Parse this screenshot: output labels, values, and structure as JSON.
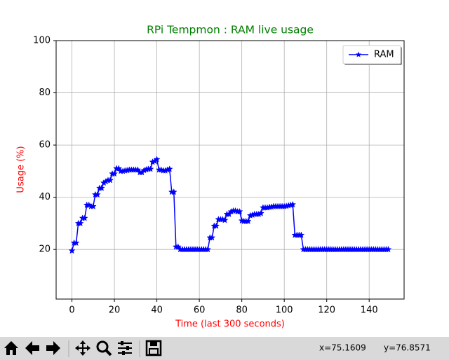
{
  "chart_data": {
    "type": "line",
    "title": "RPi Tempmon : RAM live usage",
    "title_color": "#008000",
    "x_label": "Time (last 300 seconds)",
    "y_label": "Usage (%)",
    "label_color": "#ff0000",
    "x": [
      0,
      1,
      2,
      3,
      4,
      5,
      6,
      7,
      8,
      9,
      10,
      11,
      12,
      13,
      14,
      15,
      16,
      17,
      18,
      19,
      20,
      21,
      22,
      23,
      24,
      25,
      26,
      27,
      28,
      29,
      30,
      31,
      32,
      33,
      34,
      35,
      36,
      37,
      38,
      39,
      40,
      41,
      42,
      43,
      44,
      45,
      46,
      47,
      48,
      49,
      50,
      51,
      52,
      53,
      54,
      55,
      56,
      57,
      58,
      59,
      60,
      61,
      62,
      63,
      64,
      65,
      66,
      67,
      68,
      69,
      70,
      71,
      72,
      73,
      74,
      75,
      76,
      77,
      78,
      79,
      80,
      81,
      82,
      83,
      84,
      85,
      86,
      87,
      88,
      89,
      90,
      91,
      92,
      93,
      94,
      95,
      96,
      97,
      98,
      99,
      100,
      101,
      102,
      103,
      104,
      105,
      106,
      107,
      108,
      109,
      110,
      111,
      112,
      113,
      114,
      115,
      116,
      117,
      118,
      119,
      120,
      121,
      122,
      123,
      124,
      125,
      126,
      127,
      128,
      129,
      130,
      131,
      132,
      133,
      134,
      135,
      136,
      137,
      138,
      139,
      140,
      141,
      142,
      143,
      144,
      145,
      146,
      147,
      148,
      149
    ],
    "series": [
      {
        "name": "RAM",
        "color": "#0000ff",
        "marker": "star",
        "values": [
          19.5,
          22.5,
          22.5,
          30,
          30,
          32,
          32,
          37,
          37,
          36.5,
          36.5,
          41,
          41,
          43.5,
          43.5,
          45.5,
          46,
          46.5,
          46.5,
          49,
          49,
          51,
          51,
          50,
          50,
          50.2,
          50.3,
          50.5,
          50.5,
          50.5,
          50.5,
          50.5,
          49.5,
          49.5,
          50.3,
          50.6,
          50.8,
          50.8,
          53.5,
          53.8,
          54.5,
          50.5,
          50.5,
          50.2,
          50.2,
          50.5,
          50.8,
          42,
          42,
          21,
          21,
          20,
          20,
          20,
          20,
          20,
          20,
          20,
          20,
          20,
          20,
          20,
          20,
          20,
          20,
          24.5,
          24.5,
          29,
          29,
          31.5,
          31.5,
          31.5,
          31.2,
          33.5,
          33.5,
          34.5,
          34.8,
          34.8,
          34.5,
          34.5,
          31,
          30.8,
          30.8,
          30.8,
          33,
          33.2,
          33.5,
          33.5,
          33.5,
          33.8,
          36,
          36,
          36,
          36.2,
          36.3,
          36.5,
          36.5,
          36.5,
          36.5,
          36.5,
          36.5,
          36.6,
          36.8,
          37,
          37.2,
          25.5,
          25.5,
          25.5,
          25.5,
          20,
          20,
          20,
          20,
          20,
          20,
          20,
          20,
          20,
          20,
          20,
          20,
          20,
          20,
          20,
          20,
          20,
          20,
          20,
          20,
          20,
          20,
          20,
          20,
          20,
          20,
          20,
          20,
          20,
          20,
          20,
          20,
          20,
          20,
          20,
          20,
          20,
          20,
          20,
          20,
          20
        ]
      }
    ],
    "xlim": [
      -7.45,
      156.45
    ],
    "ylim": [
      1,
      100
    ],
    "xticks": [
      0,
      20,
      40,
      60,
      80,
      100,
      120,
      140
    ],
    "yticks": [
      20,
      40,
      60,
      80,
      100
    ],
    "grid": true,
    "legend": "upper right"
  },
  "toolbar": {
    "status_x": "x=75.1609",
    "status_y": "y=76.8571"
  }
}
